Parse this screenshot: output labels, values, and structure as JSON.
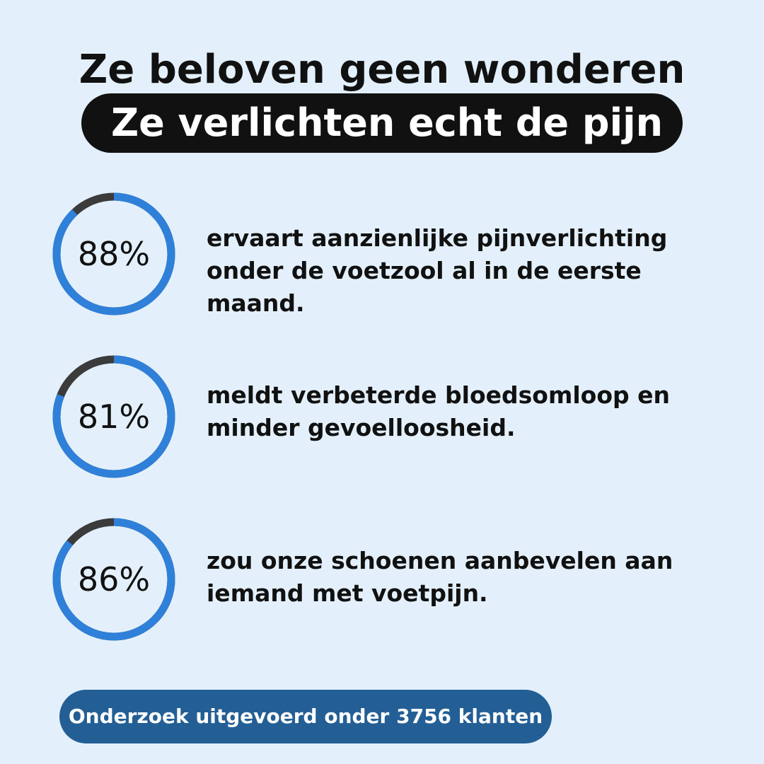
{
  "header": {
    "title": "Ze beloven geen wonderen",
    "highlight": "Ze verlichten echt de pijn"
  },
  "stats": [
    {
      "percent": 88,
      "label": "88%",
      "text": "ervaart aanzienlijke pijnverlichting onder de voetzool al in de eerste maand."
    },
    {
      "percent": 81,
      "label": "81%",
      "text": "meldt verbeterde bloedsomloop en minder gevoelloosheid."
    },
    {
      "percent": 86,
      "label": "86%",
      "text": "zou onze schoenen aanbevelen aan iemand met voetpijn."
    }
  ],
  "footer": {
    "label": "Onderzoek uitgevoerd onder 3756 klanten"
  },
  "colors": {
    "background": "#e3f0fb",
    "ring_fill": "#2f80d9",
    "ring_track": "#3b3b3b",
    "highlight_bg": "#111111",
    "footer_bg": "#235f95"
  }
}
